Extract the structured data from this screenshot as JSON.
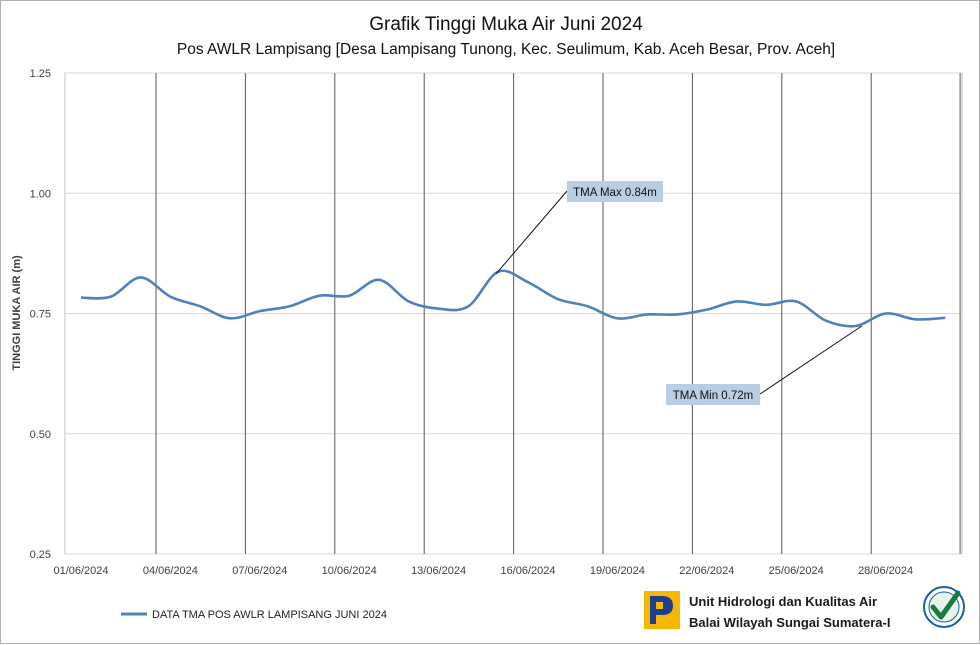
{
  "chart_data": {
    "type": "line",
    "title": "Grafik Tinggi Muka Air Juni 2024",
    "subtitle": "Pos AWLR Lampisang [Desa Lampisang Tunong, Kec. Seulimum, Kab. Aceh Besar, Prov. Aceh]",
    "xlabel": "",
    "ylabel": "TINGGI MUKA AIR (m)",
    "ylim": [
      0.25,
      1.25
    ],
    "yticks": [
      "0.25",
      "0.50",
      "0.75",
      "1.00",
      "1.25"
    ],
    "xlim": [
      "01/06/2024",
      "30/06/2024"
    ],
    "xticks": [
      "01/06/2024",
      "04/06/2024",
      "07/06/2024",
      "10/06/2024",
      "13/06/2024",
      "16/06/2024",
      "19/06/2024",
      "22/06/2024",
      "25/06/2024",
      "28/06/2024"
    ],
    "grid": "vertical and horizontal",
    "legend_position": "bottom-left",
    "series": [
      {
        "name": "DATA TMA POS AWLR LAMPISANG JUNI 2024",
        "color": "#4f81bd",
        "x": [
          "01/06/2024",
          "02/06/2024",
          "03/06/2024",
          "04/06/2024",
          "05/06/2024",
          "06/06/2024",
          "07/06/2024",
          "08/06/2024",
          "09/06/2024",
          "10/06/2024",
          "11/06/2024",
          "12/06/2024",
          "13/06/2024",
          "14/06/2024",
          "15/06/2024",
          "16/06/2024",
          "17/06/2024",
          "18/06/2024",
          "19/06/2024",
          "20/06/2024",
          "21/06/2024",
          "22/06/2024",
          "23/06/2024",
          "24/06/2024",
          "25/06/2024",
          "26/06/2024",
          "27/06/2024",
          "28/06/2024",
          "29/06/2024",
          "30/06/2024"
        ],
        "values": [
          0.783,
          0.785,
          0.825,
          0.785,
          0.765,
          0.74,
          0.755,
          0.765,
          0.787,
          0.787,
          0.82,
          0.775,
          0.76,
          0.765,
          0.837,
          0.815,
          0.78,
          0.765,
          0.74,
          0.748,
          0.748,
          0.758,
          0.775,
          0.768,
          0.775,
          0.735,
          0.724,
          0.75,
          0.738,
          0.741
        ]
      }
    ],
    "annotations": [
      {
        "label": "TMA Max 0.84m",
        "x": "15/06/2024",
        "y": 0.837
      },
      {
        "label": "TMA Min 0.72m",
        "x": "27/06/2024",
        "y": 0.724
      }
    ]
  },
  "footer": {
    "org_line1": "Unit Hidrologi dan Kualitas Air",
    "org_line2": "Balai Wilayah Sungai Sumatera-I",
    "logo_icon": "pupr-logo-icon",
    "badge_icon": "iso-certified-badge-icon",
    "logo_color": "#f5b800",
    "badge_color": "#1a7a3c"
  }
}
